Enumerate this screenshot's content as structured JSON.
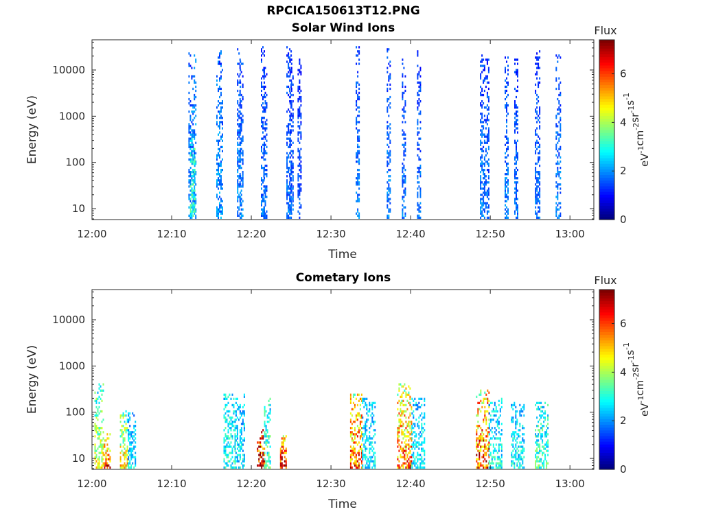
{
  "figure": {
    "title": "RPCICA150613T12.PNG"
  },
  "colormap": {
    "name": "jet",
    "range": [
      0,
      7.4
    ],
    "ticks": [
      "0",
      "2",
      "4",
      "6"
    ]
  },
  "colorbar": {
    "title": "Flux"
  },
  "chart_data": [
    {
      "type": "heatmap",
      "title": "Solar Wind Ions",
      "xlabel": "Time",
      "ylabel": "Energy (eV)",
      "colorbar_title": "Flux",
      "colorbar_label_parts": [
        "eV",
        "-1",
        "cm",
        "-2",
        "sr",
        "-1",
        "s",
        "-1"
      ],
      "xlim": [
        "12:00",
        "13:03"
      ],
      "xticks": [
        "12:00",
        "12:10",
        "12:20",
        "12:30",
        "12:40",
        "12:50",
        "13:00"
      ],
      "yscale": "log",
      "ylim": [
        5.8,
        45000
      ],
      "yticks": [
        "10",
        "100",
        "1000",
        "10000"
      ],
      "grid": false,
      "bursts": [
        {
          "t": [
            12.1,
            12.45
          ],
          "e": [
            6,
            22000
          ],
          "c": 1.6
        },
        {
          "t": [
            12.6,
            13.1
          ],
          "e": [
            6,
            28000
          ],
          "c": 1.8
        },
        {
          "t": [
            12.3,
            12.9
          ],
          "e": [
            6,
            400
          ],
          "c": 3.0
        },
        {
          "t": [
            15.6,
            16.3
          ],
          "e": [
            6,
            26000
          ],
          "c": 1.7
        },
        {
          "t": [
            18.2,
            18.7
          ],
          "e": [
            6,
            30000
          ],
          "c": 1.6
        },
        {
          "t": [
            18.5,
            19.0
          ],
          "e": [
            6,
            16000
          ],
          "c": 1.5
        },
        {
          "t": [
            21.2,
            21.7
          ],
          "e": [
            6,
            30000
          ],
          "c": 1.4
        },
        {
          "t": [
            21.5,
            22.0
          ],
          "e": [
            6,
            16000
          ],
          "c": 1.3
        },
        {
          "t": [
            24.4,
            25.0
          ],
          "e": [
            6,
            30000
          ],
          "c": 1.4
        },
        {
          "t": [
            24.8,
            25.3
          ],
          "e": [
            6,
            16000
          ],
          "c": 1.3
        },
        {
          "t": [
            25.8,
            26.2
          ],
          "e": [
            6,
            16000
          ],
          "c": 1.2
        },
        {
          "t": [
            33.1,
            33.6
          ],
          "e": [
            6,
            30000
          ],
          "c": 1.5
        },
        {
          "t": [
            37.0,
            37.5
          ],
          "e": [
            6,
            28000
          ],
          "c": 1.5
        },
        {
          "t": [
            38.9,
            39.4
          ],
          "e": [
            6,
            16000
          ],
          "c": 1.4
        },
        {
          "t": [
            40.8,
            41.3
          ],
          "e": [
            6,
            24000
          ],
          "c": 1.4
        },
        {
          "t": [
            48.7,
            49.2
          ],
          "e": [
            6,
            20000
          ],
          "c": 1.5
        },
        {
          "t": [
            49.2,
            49.8
          ],
          "e": [
            6,
            16000
          ],
          "c": 1.4
        },
        {
          "t": [
            51.8,
            52.3
          ],
          "e": [
            6,
            20000
          ],
          "c": 1.5
        },
        {
          "t": [
            53.0,
            53.5
          ],
          "e": [
            6,
            16000
          ],
          "c": 1.4
        },
        {
          "t": [
            55.6,
            56.2
          ],
          "e": [
            6,
            24000
          ],
          "c": 1.4
        },
        {
          "t": [
            58.2,
            58.8
          ],
          "e": [
            6,
            20000
          ],
          "c": 1.5
        }
      ]
    },
    {
      "type": "heatmap",
      "title": "Cometary Ions",
      "xlabel": "Time",
      "ylabel": "Energy (eV)",
      "colorbar_title": "Flux",
      "colorbar_label_parts": [
        "eV",
        "-1",
        "cm",
        "-2",
        "sr",
        "-1",
        "s",
        "-1"
      ],
      "xlim": [
        "12:00",
        "13:03"
      ],
      "xticks": [
        "12:00",
        "12:10",
        "12:20",
        "12:30",
        "12:40",
        "12:50",
        "13:00"
      ],
      "yscale": "log",
      "ylim": [
        5.8,
        45000
      ],
      "yticks": [
        "10",
        "100",
        "1000",
        "10000"
      ],
      "grid": false,
      "bursts": [
        {
          "t": [
            0.3,
            1.5
          ],
          "e": [
            6,
            400
          ],
          "c": 3.2
        },
        {
          "t": [
            1.5,
            2.2
          ],
          "e": [
            6,
            40
          ],
          "c": 4.8
        },
        {
          "t": [
            3.5,
            4.5
          ],
          "e": [
            6,
            100
          ],
          "c": 3.6
        },
        {
          "t": [
            4.5,
            5.5
          ],
          "e": [
            6,
            100
          ],
          "c": 2.3
        },
        {
          "t": [
            16.5,
            18.0
          ],
          "e": [
            6,
            250
          ],
          "c": 2.8
        },
        {
          "t": [
            18.0,
            19.2
          ],
          "e": [
            6,
            250
          ],
          "c": 2.4
        },
        {
          "t": [
            20.7,
            21.6
          ],
          "e": [
            6,
            40
          ],
          "c": 6.3
        },
        {
          "t": [
            21.6,
            22.4
          ],
          "e": [
            6,
            200
          ],
          "c": 3.0
        },
        {
          "t": [
            23.6,
            24.3
          ],
          "e": [
            6,
            30
          ],
          "c": 5.4
        },
        {
          "t": [
            32.4,
            33.9
          ],
          "e": [
            6,
            250
          ],
          "c": 4.8
        },
        {
          "t": [
            33.9,
            35.5
          ],
          "e": [
            6,
            200
          ],
          "c": 2.4
        },
        {
          "t": [
            38.3,
            40.1
          ],
          "e": [
            6,
            400
          ],
          "c": 4.6
        },
        {
          "t": [
            40.1,
            41.7
          ],
          "e": [
            6,
            200
          ],
          "c": 2.5
        },
        {
          "t": [
            48.2,
            49.8
          ],
          "e": [
            6,
            300
          ],
          "c": 5.0
        },
        {
          "t": [
            49.8,
            51.4
          ],
          "e": [
            6,
            200
          ],
          "c": 2.6
        },
        {
          "t": [
            52.6,
            54.3
          ],
          "e": [
            6,
            150
          ],
          "c": 2.5
        },
        {
          "t": [
            55.6,
            57.2
          ],
          "e": [
            6,
            150
          ],
          "c": 3.0
        }
      ]
    }
  ]
}
